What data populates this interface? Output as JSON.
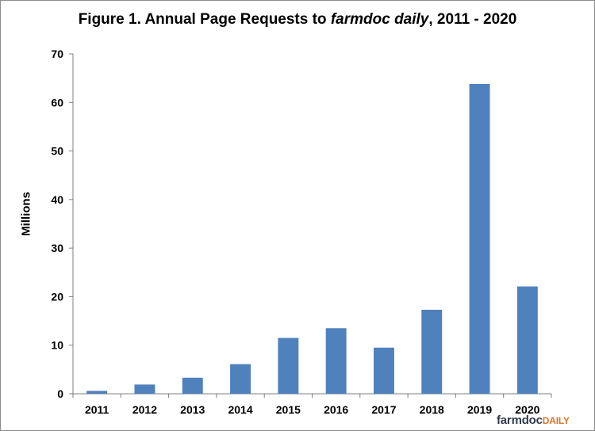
{
  "chart_data": {
    "type": "bar",
    "title": {
      "prefix": "Figure 1. Annual Page Requests to ",
      "italic": "farmdoc daily",
      "suffix": ", 2011 - 2020"
    },
    "xlabel": "",
    "ylabel": "Millions",
    "categories": [
      "2011",
      "2012",
      "2013",
      "2014",
      "2015",
      "2016",
      "2017",
      "2018",
      "2019",
      "2020"
    ],
    "values": [
      0.6,
      1.9,
      3.3,
      6.1,
      11.5,
      13.5,
      9.5,
      17.3,
      63.8,
      22.1
    ],
    "ylim": [
      0,
      70
    ],
    "yticks": [
      0,
      10,
      20,
      30,
      40,
      50,
      60,
      70
    ],
    "grid": false,
    "legend": "none",
    "bar_color": "#4f81bd"
  },
  "logo": {
    "part1": "farmdoc",
    "part2": "DAILY"
  }
}
